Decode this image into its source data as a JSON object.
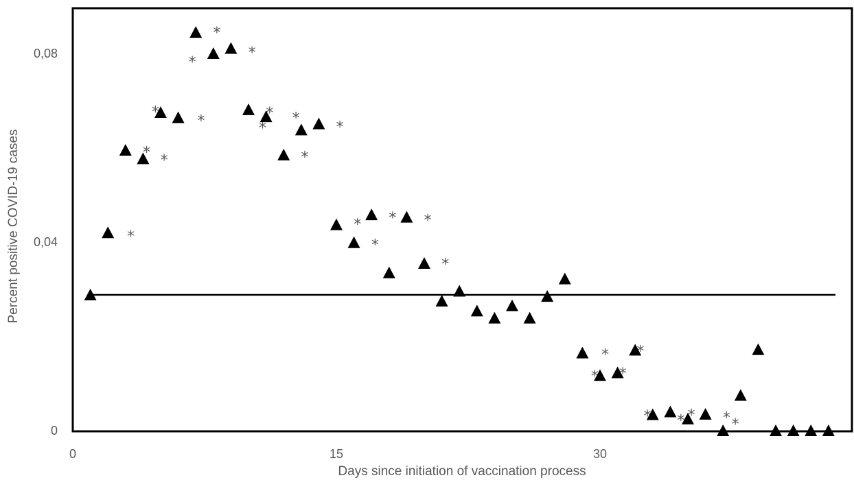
{
  "chart_data": {
    "type": "scatter",
    "title": "",
    "xlabel": "Days since initiation of vaccination process",
    "ylabel": "Percent positive COVID-19 cases",
    "xlim": [
      0,
      44
    ],
    "ylim": [
      0,
      0.09
    ],
    "x_ticks": [
      {
        "value": 0,
        "label": "0"
      },
      {
        "value": 15,
        "label": "15"
      },
      {
        "value": 30,
        "label": "30"
      }
    ],
    "y_ticks": [
      {
        "value": 0,
        "label": "0"
      },
      {
        "value": 0.04,
        "label": "0,04"
      },
      {
        "value": 0.08,
        "label": "0,08"
      }
    ],
    "grid": false,
    "legend": "none",
    "colors": {
      "triangles": "#000000",
      "asterisks": "#595959",
      "reference_line": "#000000"
    },
    "reference_line": {
      "y": 0.0288
    },
    "triangles": [
      {
        "x": 1,
        "y": 0.0288
      },
      {
        "x": 2,
        "y": 0.042
      },
      {
        "x": 3,
        "y": 0.0595
      },
      {
        "x": 4,
        "y": 0.0577
      },
      {
        "x": 5,
        "y": 0.0675
      },
      {
        "x": 6,
        "y": 0.0664
      },
      {
        "x": 7,
        "y": 0.0845
      },
      {
        "x": 8,
        "y": 0.08
      },
      {
        "x": 9,
        "y": 0.0811
      },
      {
        "x": 10,
        "y": 0.0681
      },
      {
        "x": 11,
        "y": 0.0666
      },
      {
        "x": 12,
        "y": 0.0585
      },
      {
        "x": 13,
        "y": 0.0638
      },
      {
        "x": 14,
        "y": 0.0651
      },
      {
        "x": 15,
        "y": 0.0437
      },
      {
        "x": 16,
        "y": 0.0399
      },
      {
        "x": 17,
        "y": 0.0458
      },
      {
        "x": 18,
        "y": 0.0335
      },
      {
        "x": 19,
        "y": 0.0453
      },
      {
        "x": 20,
        "y": 0.0355
      },
      {
        "x": 21,
        "y": 0.0275
      },
      {
        "x": 22,
        "y": 0.0296
      },
      {
        "x": 23,
        "y": 0.0254
      },
      {
        "x": 24,
        "y": 0.0239
      },
      {
        "x": 25,
        "y": 0.0265
      },
      {
        "x": 26,
        "y": 0.0239
      },
      {
        "x": 27,
        "y": 0.0285
      },
      {
        "x": 28,
        "y": 0.0322
      },
      {
        "x": 29,
        "y": 0.0165
      },
      {
        "x": 30,
        "y": 0.0117
      },
      {
        "x": 31,
        "y": 0.0123
      },
      {
        "x": 32,
        "y": 0.0171
      },
      {
        "x": 33,
        "y": 0.0034
      },
      {
        "x": 34,
        "y": 0.004
      },
      {
        "x": 35,
        "y": 0.0025
      },
      {
        "x": 36,
        "y": 0.0035
      },
      {
        "x": 37,
        "y": 0.0
      },
      {
        "x": 38,
        "y": 0.0075
      },
      {
        "x": 39,
        "y": 0.0172
      },
      {
        "x": 40,
        "y": 0.0
      },
      {
        "x": 41,
        "y": 0.0
      },
      {
        "x": 42,
        "y": 0.0
      },
      {
        "x": 43,
        "y": 0.0
      }
    ],
    "asterisks": [
      {
        "x": 3.3,
        "y": 0.0422
      },
      {
        "x": 4.2,
        "y": 0.06
      },
      {
        "x": 4.7,
        "y": 0.0686
      },
      {
        "x": 5.2,
        "y": 0.0583
      },
      {
        "x": 6.8,
        "y": 0.0791
      },
      {
        "x": 7.3,
        "y": 0.0667
      },
      {
        "x": 8.2,
        "y": 0.0854
      },
      {
        "x": 10.2,
        "y": 0.0812
      },
      {
        "x": 10.8,
        "y": 0.0652
      },
      {
        "x": 11.2,
        "y": 0.0684
      },
      {
        "x": 12.7,
        "y": 0.0673
      },
      {
        "x": 13.2,
        "y": 0.059
      },
      {
        "x": 15.2,
        "y": 0.0654
      },
      {
        "x": 16.2,
        "y": 0.0447
      },
      {
        "x": 17.2,
        "y": 0.0404
      },
      {
        "x": 18.2,
        "y": 0.0461
      },
      {
        "x": 20.2,
        "y": 0.0456
      },
      {
        "x": 21.2,
        "y": 0.0363
      },
      {
        "x": 29.7,
        "y": 0.0125
      },
      {
        "x": 30.3,
        "y": 0.0171
      },
      {
        "x": 31.3,
        "y": 0.0131
      },
      {
        "x": 32.3,
        "y": 0.0178
      },
      {
        "x": 32.7,
        "y": 0.0041
      },
      {
        "x": 34.6,
        "y": 0.0031
      },
      {
        "x": 35.2,
        "y": 0.0043
      },
      {
        "x": 37.2,
        "y": 0.0037
      },
      {
        "x": 37.7,
        "y": 0.0023
      }
    ]
  }
}
